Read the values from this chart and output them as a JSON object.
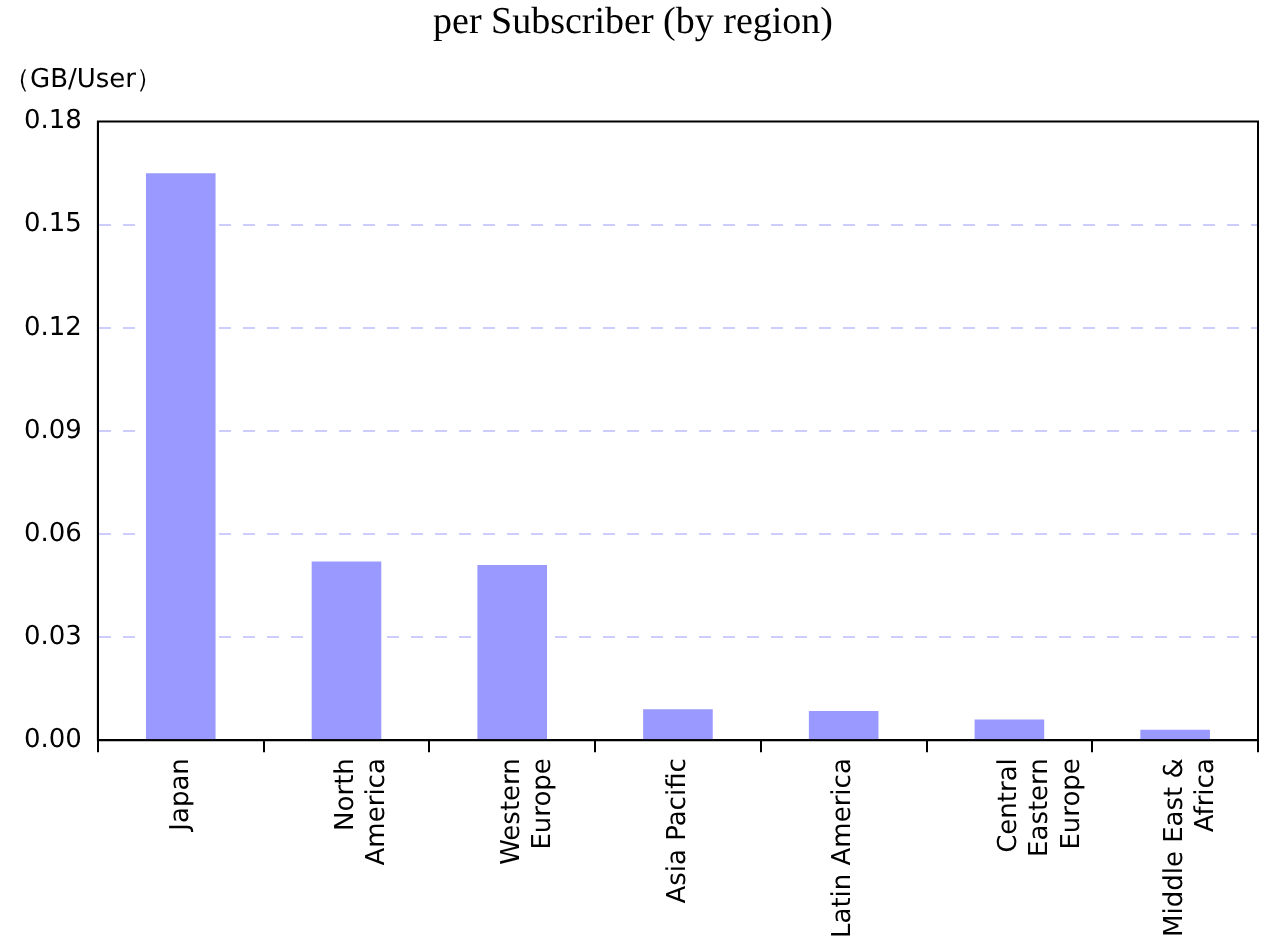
{
  "chart_data": {
    "type": "bar",
    "title": "per Subscriber (by region)",
    "ylabel": "（GB/User）",
    "categories": [
      "Japan",
      "North\nAmerica",
      "Western\nEurope",
      "Asia Pacific",
      "Latin America",
      "Central\nEastern\nEurope",
      "Middle East &\nAfrica"
    ],
    "values": [
      0.165,
      0.052,
      0.051,
      0.009,
      0.0085,
      0.006,
      0.003
    ],
    "color": "#9999ff",
    "ylim": [
      0,
      0.18
    ],
    "yticks": [
      {
        "value": 0,
        "label": "0.00"
      },
      {
        "value": 0.03,
        "label": "0.03"
      },
      {
        "value": 0.06,
        "label": "0.06"
      },
      {
        "value": 0.09,
        "label": "0.09"
      },
      {
        "value": 0.12,
        "label": "0.12"
      },
      {
        "value": 0.15,
        "label": "0.15"
      },
      {
        "value": 0.18,
        "label": "0.18"
      }
    ],
    "grid": "y"
  }
}
